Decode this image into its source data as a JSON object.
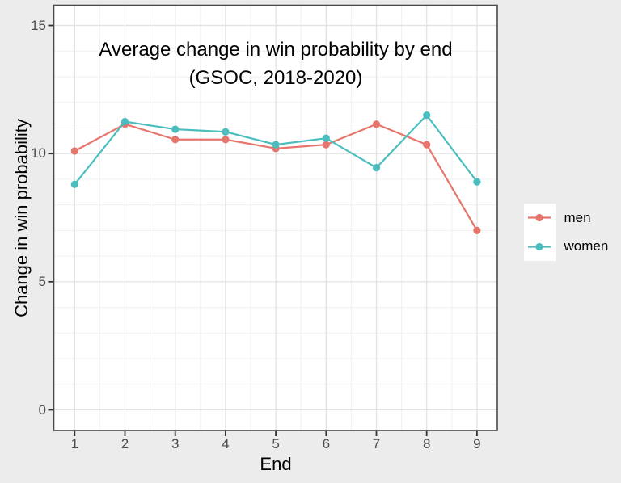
{
  "chart_data": {
    "type": "line",
    "title_lines": [
      "Average change in win probability by end",
      "(GSOC, 2018-2020)"
    ],
    "xlabel": "End",
    "ylabel": "Change in win probability",
    "x": [
      1,
      2,
      3,
      4,
      5,
      6,
      7,
      8,
      9
    ],
    "series": [
      {
        "name": "men",
        "color": "#E8756C",
        "values": [
          10.1,
          11.15,
          10.55,
          10.55,
          10.2,
          10.35,
          11.15,
          10.35,
          7.0
        ]
      },
      {
        "name": "women",
        "color": "#4ABDBE",
        "values": [
          8.8,
          11.25,
          10.95,
          10.85,
          10.35,
          10.6,
          9.45,
          11.5,
          8.9
        ]
      }
    ],
    "x_ticks": [
      1,
      2,
      3,
      4,
      5,
      6,
      7,
      8,
      9
    ],
    "y_ticks": [
      0,
      5,
      10,
      15
    ],
    "xlim": [
      0.59,
      9.4
    ],
    "ylim": [
      -0.8,
      15.8
    ],
    "grid": {
      "on": true,
      "x_minor_step": 0.5,
      "y_minor_step": 1
    },
    "legend_position": "right"
  },
  "colors": {
    "page_bg": "#ECECEC",
    "panel_bg": "#FFFFFF",
    "panel_border": "#4A4A4A",
    "grid_major": "#E3E3E3",
    "grid_minor": "#F0F0F0",
    "tick_mark": "#333333",
    "tick_label": "#4D4D4D",
    "text": "#000000",
    "men": "#E8756C",
    "women": "#4ABDBE"
  }
}
